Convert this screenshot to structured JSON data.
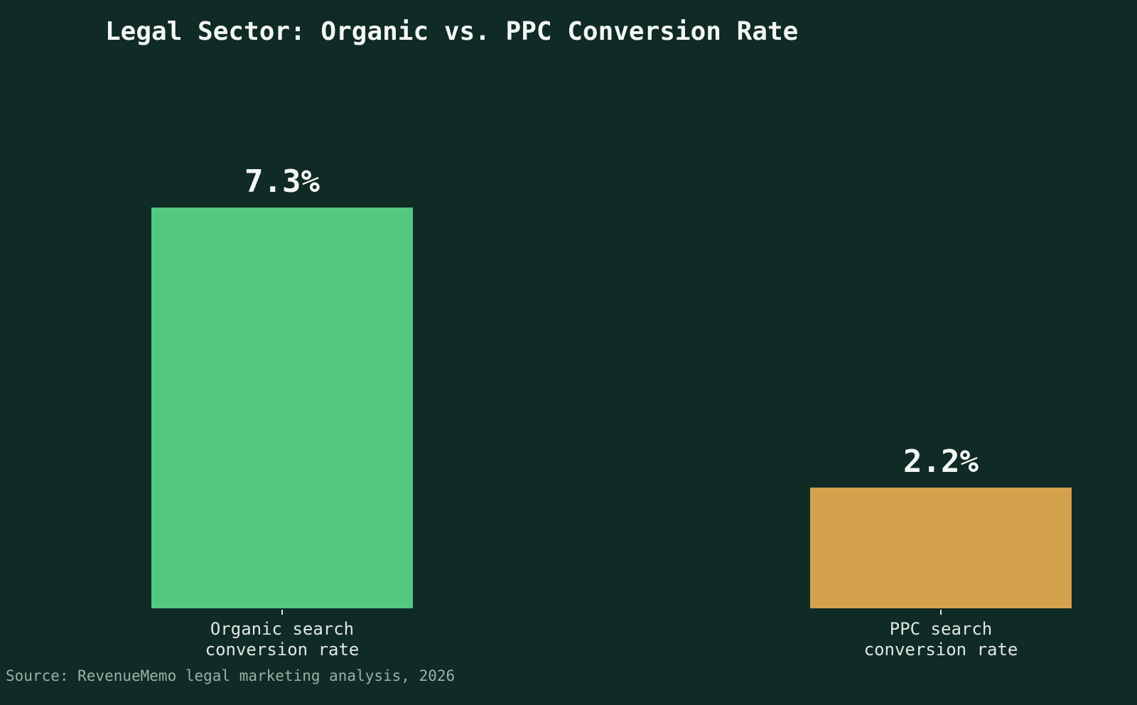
{
  "chart_data": {
    "type": "bar",
    "title": "Legal Sector: Organic vs. PPC Conversion Rate",
    "categories": [
      [
        "Organic search",
        "conversion rate"
      ],
      [
        "PPC search",
        "conversion rate"
      ]
    ],
    "values": [
      7.3,
      2.2
    ],
    "value_labels": [
      "7.3%",
      "2.2%"
    ],
    "bar_colors": [
      "#52c97f",
      "#d4a24c"
    ],
    "xlabel": "",
    "ylabel": "",
    "ylim": [
      0,
      7.3
    ],
    "grid": false,
    "legend": false,
    "source": "Source: RevenueMemo legal marketing analysis, 2026"
  }
}
